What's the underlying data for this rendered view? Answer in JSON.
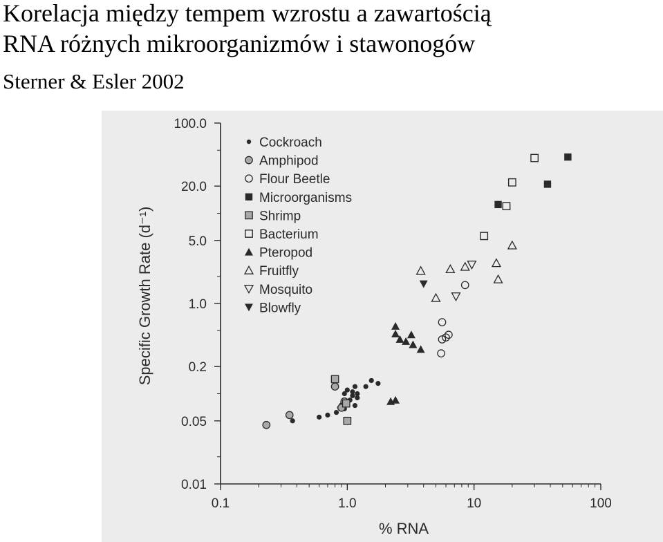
{
  "header": {
    "title_line1": "Korelacja między tempem wzrostu a zawartością",
    "title_line2": "RNA różnych mikroorganizmów i stawonogów",
    "subtitle": "Sterner & Esler 2002"
  },
  "chart_data": {
    "type": "scatter",
    "title": "",
    "xlabel": "% RNA",
    "ylabel": "Specific Growth Rate (d⁻¹)",
    "xscale": "log",
    "yscale": "log",
    "xlim": [
      0.1,
      100
    ],
    "ylim": [
      0.01,
      100
    ],
    "xticks": [
      0.1,
      1,
      10,
      100
    ],
    "xtick_labels": [
      "0.1",
      "1.0",
      "10",
      "100"
    ],
    "yticks": [
      0.01,
      0.05,
      0.2,
      1,
      5,
      20,
      100
    ],
    "ytick_labels": [
      "0.01",
      "0.05",
      "0.2",
      "1.0",
      "5.0",
      "20.0",
      "100.0"
    ],
    "grid": false,
    "legend_position": "top-left",
    "series": [
      {
        "name": "Cockroach",
        "marker": "filled-circle-small",
        "points": [
          [
            0.37,
            0.05
          ],
          [
            0.6,
            0.055
          ],
          [
            0.7,
            0.058
          ],
          [
            0.82,
            0.062
          ],
          [
            0.87,
            0.07
          ],
          [
            0.9,
            0.075
          ],
          [
            0.95,
            0.068
          ],
          [
            1.0,
            0.078
          ],
          [
            1.05,
            0.085
          ],
          [
            1.1,
            0.095
          ],
          [
            1.15,
            0.074
          ],
          [
            1.2,
            0.09
          ],
          [
            1.1,
            0.105
          ],
          [
            1.15,
            0.12
          ],
          [
            1.2,
            0.1
          ],
          [
            0.95,
            0.1
          ],
          [
            1.0,
            0.11
          ],
          [
            1.4,
            0.12
          ],
          [
            1.55,
            0.14
          ],
          [
            1.75,
            0.13
          ]
        ]
      },
      {
        "name": "Amphipod",
        "marker": "gray-circle",
        "points": [
          [
            0.23,
            0.045
          ],
          [
            0.35,
            0.058
          ],
          [
            0.8,
            0.12
          ],
          [
            0.9,
            0.07
          ],
          [
            0.95,
            0.082
          ]
        ]
      },
      {
        "name": "Flour Beetle",
        "marker": "open-circle",
        "points": [
          [
            5.5,
            0.28
          ],
          [
            5.6,
            0.4
          ],
          [
            6.0,
            0.42
          ],
          [
            6.3,
            0.45
          ],
          [
            5.6,
            0.62
          ],
          [
            8.5,
            1.6
          ]
        ]
      },
      {
        "name": "Microorganisms",
        "marker": "filled-square",
        "points": [
          [
            15.5,
            12.5
          ],
          [
            38,
            21
          ],
          [
            55,
            42
          ]
        ]
      },
      {
        "name": "Shrimp",
        "marker": "gray-square",
        "points": [
          [
            0.8,
            0.145
          ],
          [
            0.98,
            0.078
          ],
          [
            1.0,
            0.05
          ]
        ]
      },
      {
        "name": "Bacterium",
        "marker": "open-square",
        "points": [
          [
            12,
            5.6
          ],
          [
            18,
            12
          ],
          [
            20,
            22
          ],
          [
            30,
            41
          ]
        ]
      },
      {
        "name": "Pteropod",
        "marker": "filled-triangle-up",
        "points": [
          [
            2.2,
            0.082
          ],
          [
            2.4,
            0.085
          ],
          [
            2.4,
            0.56
          ],
          [
            2.4,
            0.46
          ],
          [
            2.6,
            0.4
          ],
          [
            2.9,
            0.38
          ],
          [
            3.2,
            0.45
          ],
          [
            3.3,
            0.35
          ],
          [
            3.8,
            0.31
          ]
        ]
      },
      {
        "name": "Fruitfly",
        "marker": "open-triangle-up",
        "points": [
          [
            3.8,
            2.3
          ],
          [
            5.0,
            1.15
          ],
          [
            6.5,
            2.4
          ],
          [
            8.5,
            2.55
          ],
          [
            15,
            2.8
          ],
          [
            15.5,
            1.85
          ],
          [
            20,
            4.4
          ]
        ]
      },
      {
        "name": "Mosquito",
        "marker": "open-triangle-down",
        "points": [
          [
            7.2,
            1.2
          ],
          [
            9.6,
            2.7
          ]
        ]
      },
      {
        "name": "Blowfly",
        "marker": "filled-triangle-down",
        "points": [
          [
            4.0,
            1.65
          ]
        ]
      }
    ]
  }
}
